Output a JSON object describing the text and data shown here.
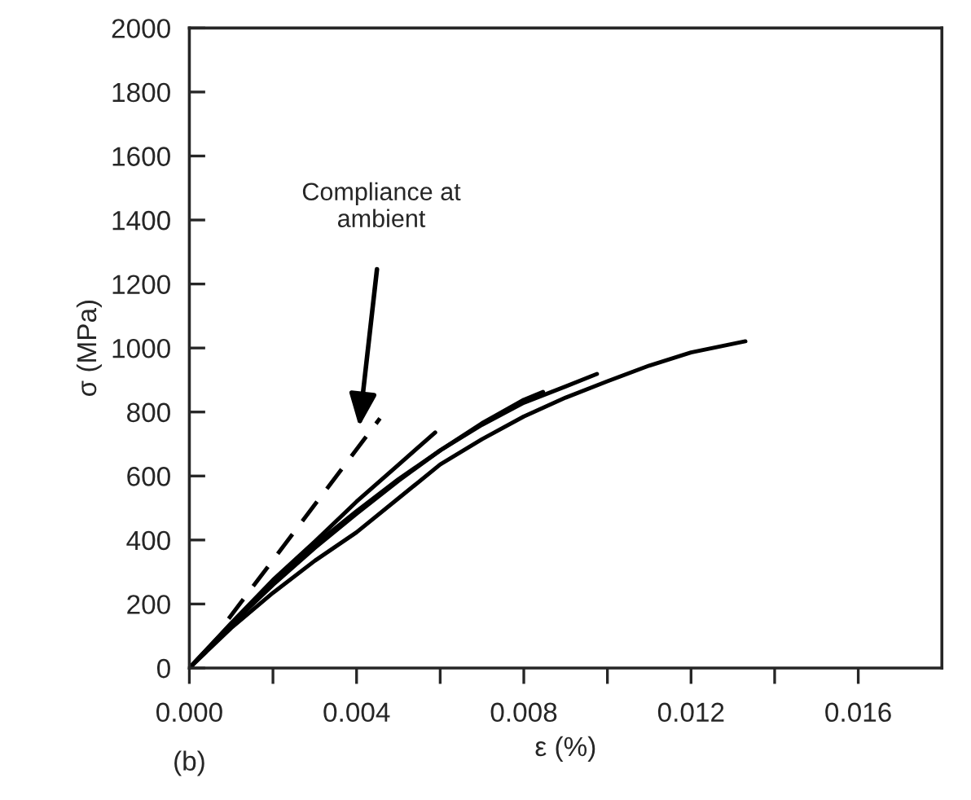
{
  "chart_data": {
    "type": "line",
    "xlabel": "ε (%)",
    "ylabel": "σ (MPa)",
    "xlim": [
      0,
      0.018
    ],
    "ylim": [
      0,
      2000
    ],
    "xticks": [
      {
        "value": 0,
        "label": "0.000"
      },
      {
        "value": 0.002,
        "label": null
      },
      {
        "value": 0.004,
        "label": "0.004"
      },
      {
        "value": 0.006,
        "label": null
      },
      {
        "value": 0.008,
        "label": "0.008"
      },
      {
        "value": 0.01,
        "label": null
      },
      {
        "value": 0.012,
        "label": "0.012"
      },
      {
        "value": 0.014,
        "label": null
      },
      {
        "value": 0.016,
        "label": "0.016"
      }
    ],
    "yticks": [
      0,
      200,
      400,
      600,
      800,
      1000,
      1200,
      1400,
      1600,
      1800,
      2000
    ],
    "grid": false,
    "legend": false,
    "marker": "none",
    "line_style": "solid",
    "series": [
      {
        "color": "#000000",
        "x": [
          0,
          0.001,
          0.002,
          0.003,
          0.004,
          0.005,
          0.006,
          0.007,
          0.008,
          0.009,
          0.01,
          0.011,
          0.012,
          0.0133
        ],
        "values": [
          0,
          125,
          235,
          335,
          424,
          530,
          636,
          715,
          786,
          845,
          896,
          945,
          986,
          1021
        ]
      },
      {
        "color": "#000000",
        "x": [
          0,
          0.001,
          0.002,
          0.003,
          0.004,
          0.005,
          0.006,
          0.007,
          0.008,
          0.009,
          0.00975
        ],
        "values": [
          0,
          135,
          260,
          375,
          482,
          585,
          680,
          760,
          829,
          880,
          919
        ]
      },
      {
        "color": "#000000",
        "x": [
          0,
          0.001,
          0.002,
          0.003,
          0.004,
          0.005,
          0.006,
          0.007,
          0.008,
          0.00846
        ],
        "values": [
          0,
          138,
          265,
          385,
          490,
          590,
          680,
          765,
          838,
          863
        ]
      },
      {
        "color": "#000000",
        "x": [
          0,
          0.001,
          0.002,
          0.003,
          0.004,
          0.005,
          0.00588
        ],
        "values": [
          0,
          140,
          275,
          395,
          520,
          635,
          736
        ]
      },
      {
        "color": "#000000",
        "line_style": "dashed",
        "x": [
          0.00094,
          0.00456
        ],
        "values": [
          154,
          780
        ]
      }
    ],
    "annotations": [
      "Compliance at\nambient",
      "(b)"
    ]
  }
}
